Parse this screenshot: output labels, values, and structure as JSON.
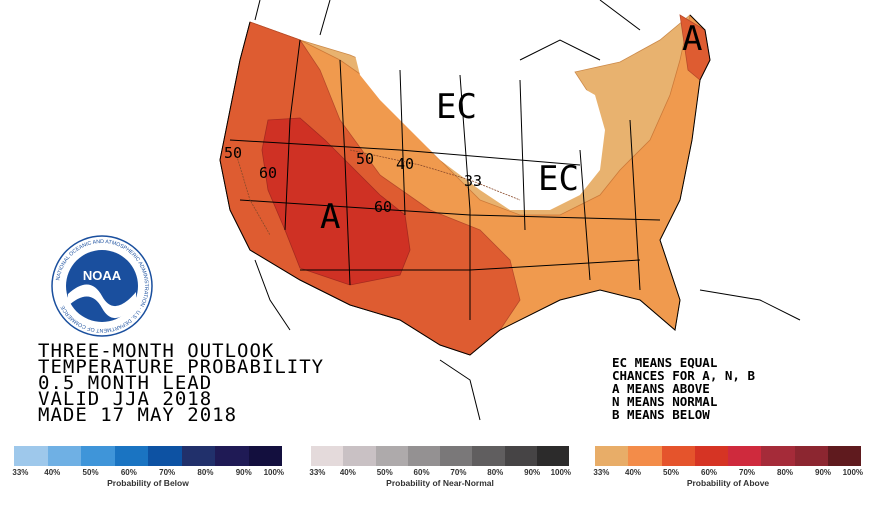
{
  "map": {
    "region_labels": [
      "EC",
      "EC",
      "A",
      "A"
    ],
    "contour_labels": [
      "50",
      "60",
      "50",
      "40",
      "33",
      "60"
    ]
  },
  "title_lines": [
    "THREE-MONTH OUTLOOK",
    "TEMPERATURE PROBABILITY",
    "0.5 MONTH LEAD",
    "VALID JJA 2018",
    "MADE 17 MAY 2018"
  ],
  "legend_note": [
    "EC MEANS EQUAL",
    "CHANCES FOR A, N, B",
    "A MEANS ABOVE",
    "N MEANS NORMAL",
    "B MEANS BELOW"
  ],
  "logo": {
    "text": "NOAA",
    "ring_text": "NATIONAL OCEANIC AND ATMOSPHERIC ADMINISTRATION · U.S. DEPARTMENT OF COMMERCE"
  },
  "scales": [
    {
      "caption": "Probability of Below",
      "ticks": [
        "33%",
        "40%",
        "50%",
        "60%",
        "70%",
        "80%",
        "90%",
        "100%"
      ],
      "colors": [
        "#9ec8eb",
        "#6fb0e4",
        "#3f95d9",
        "#1a74c2",
        "#0d52a3",
        "#21306b",
        "#1f1a55",
        "#130f3e"
      ]
    },
    {
      "caption": "Probability of Near-Normal",
      "ticks": [
        "33%",
        "40%",
        "50%",
        "60%",
        "70%",
        "80%",
        "90%",
        "100%"
      ],
      "colors": [
        "#e4dadb",
        "#c9c1c4",
        "#aeaaab",
        "#949192",
        "#7a7879",
        "#605e5f",
        "#464445",
        "#2c2b2b"
      ]
    },
    {
      "caption": "Probability of Above",
      "ticks": [
        "33%",
        "40%",
        "50%",
        "60%",
        "70%",
        "80%",
        "90%",
        "100%"
      ],
      "colors": [
        "#e8ad68",
        "#f38c49",
        "#e5542c",
        "#d63424",
        "#cf2a3d",
        "#a52b39",
        "#8c2630",
        "#5f1a1e"
      ]
    }
  ],
  "colors": {
    "above_33": "#e8b26f",
    "above_40": "#f09a4e",
    "above_50": "#de5c31",
    "above_60": "#cf3124",
    "ec": "#ffffff",
    "noaa_blue": "#1a4f9e"
  }
}
